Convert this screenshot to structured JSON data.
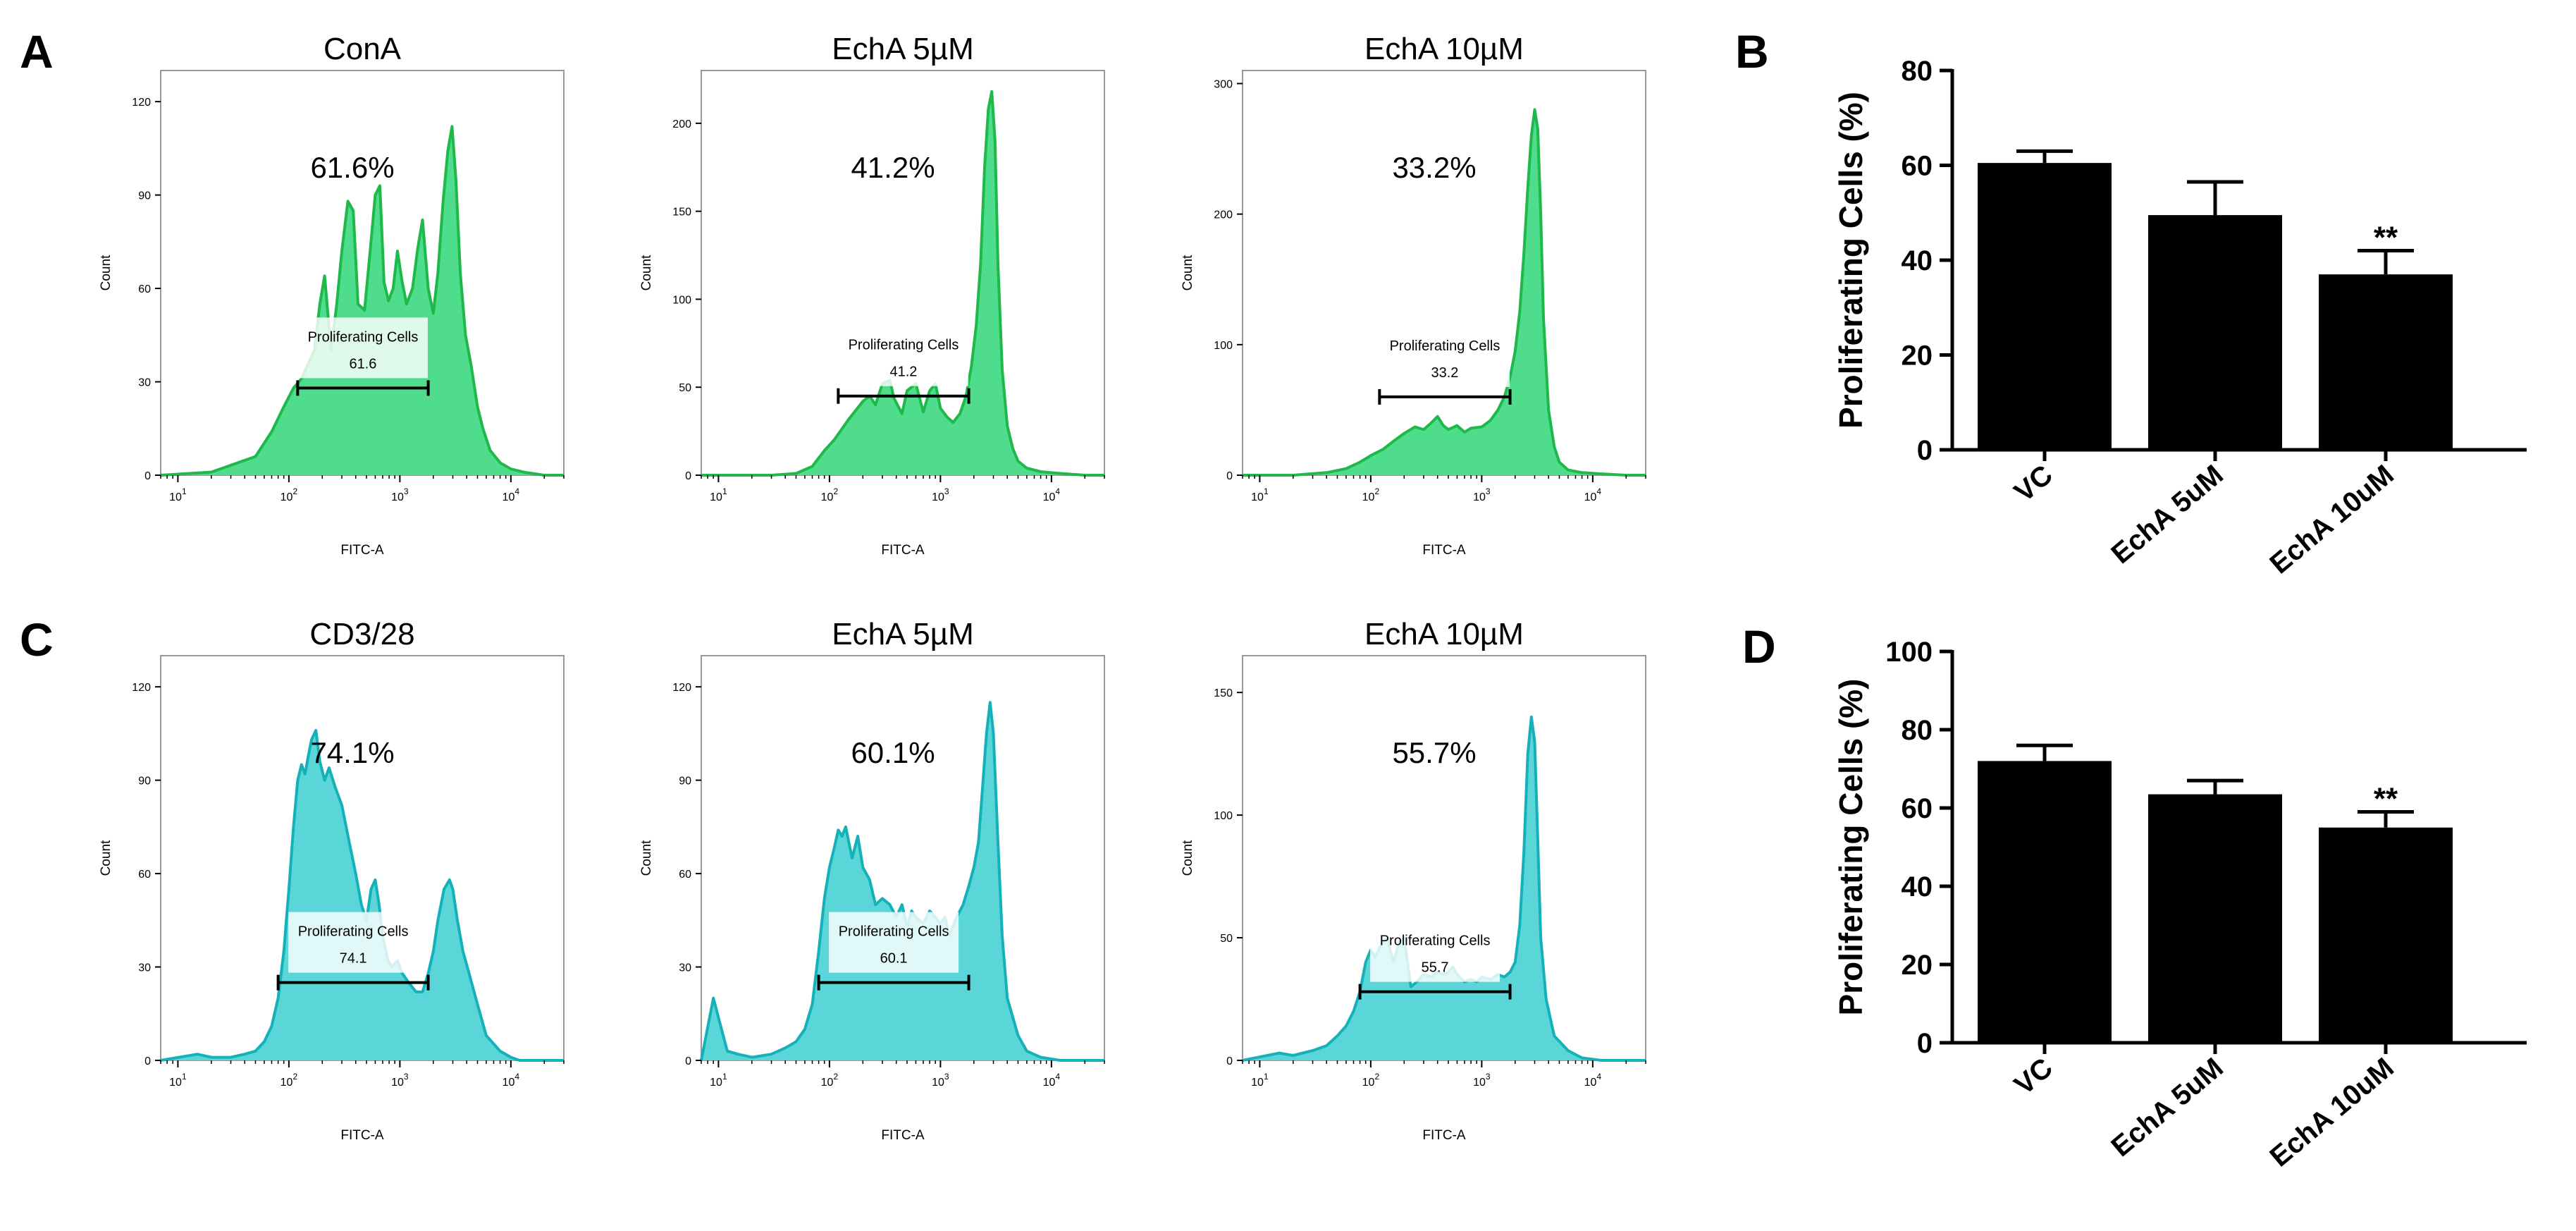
{
  "panel_letters": {
    "A": "A",
    "B": "B",
    "C": "C",
    "D": "D"
  },
  "colors": {
    "green_fill": "#4fdc8c",
    "green_line": "#1fb84a",
    "cyan_fill": "#5ad6d8",
    "cyan_line": "#14b2b8",
    "bar": "#000000"
  },
  "chart_data": [
    {
      "id": "A1",
      "type": "area",
      "title": "ConA",
      "xlabel": "FITC-A",
      "ylabel": "Count",
      "xscale": "log",
      "xlim": [
        7,
        30000
      ],
      "ylim": [
        0,
        130
      ],
      "yticks": [
        0,
        30,
        60,
        90,
        120
      ],
      "xticks": [
        {
          "base": "10",
          "exp": "1",
          "v": 10
        },
        {
          "base": "10",
          "exp": "2",
          "v": 100
        },
        {
          "base": "10",
          "exp": "3",
          "v": 1000
        },
        {
          "base": "10",
          "exp": "4",
          "v": 10000
        }
      ],
      "percent_label": "61.6%",
      "gate": {
        "name": "Proliferating Cells",
        "value": "61.6",
        "from": 120,
        "to": 1800,
        "level": 28
      },
      "color": "green",
      "x": [
        7,
        20,
        50,
        70,
        90,
        110,
        130,
        150,
        170,
        190,
        210,
        240,
        270,
        300,
        340,
        380,
        420,
        480,
        540,
        600,
        660,
        720,
        790,
        870,
        950,
        1050,
        1150,
        1300,
        1450,
        1600,
        1800,
        2000,
        2200,
        2450,
        2700,
        2950,
        3200,
        3500,
        3900,
        4400,
        5000,
        5600,
        6500,
        8000,
        10000,
        13000,
        20000,
        30000
      ],
      "y": [
        0,
        1,
        6,
        14,
        22,
        28,
        31,
        36,
        40,
        55,
        64,
        40,
        55,
        72,
        88,
        85,
        55,
        53,
        72,
        90,
        93,
        62,
        56,
        60,
        72,
        62,
        55,
        60,
        73,
        82,
        60,
        52,
        65,
        88,
        104,
        112,
        95,
        65,
        45,
        35,
        22,
        15,
        8,
        4,
        2,
        1,
        0,
        0
      ]
    },
    {
      "id": "A2",
      "type": "area",
      "title": "EchA 5µM",
      "xlabel": "FITC-A",
      "ylabel": "Count",
      "xscale": "log",
      "xlim": [
        7,
        30000
      ],
      "ylim": [
        0,
        230
      ],
      "yticks": [
        0,
        50,
        100,
        150,
        200
      ],
      "xticks": [
        {
          "base": "10",
          "exp": "1",
          "v": 10
        },
        {
          "base": "10",
          "exp": "2",
          "v": 100
        },
        {
          "base": "10",
          "exp": "3",
          "v": 1000
        },
        {
          "base": "10",
          "exp": "4",
          "v": 10000
        }
      ],
      "percent_label": "41.2%",
      "gate": {
        "name": "Proliferating Cells",
        "value": "41.2",
        "from": 120,
        "to": 1800,
        "level": 45
      },
      "color": "green",
      "x": [
        7,
        30,
        50,
        70,
        90,
        110,
        150,
        200,
        230,
        260,
        300,
        350,
        380,
        450,
        500,
        600,
        700,
        800,
        900,
        1000,
        1150,
        1300,
        1500,
        1700,
        1900,
        2100,
        2300,
        2500,
        2700,
        2900,
        3100,
        3300,
        3600,
        4000,
        4500,
        5000,
        6000,
        8000,
        12000,
        20000,
        30000
      ],
      "y": [
        0,
        0,
        1,
        5,
        14,
        20,
        32,
        42,
        45,
        40,
        52,
        54,
        44,
        35,
        48,
        52,
        36,
        48,
        52,
        38,
        33,
        30,
        35,
        45,
        62,
        85,
        120,
        175,
        208,
        218,
        190,
        120,
        60,
        28,
        15,
        8,
        4,
        2,
        1,
        0,
        0
      ]
    },
    {
      "id": "A3",
      "type": "area",
      "title": "EchA 10µM",
      "xlabel": "FITC-A",
      "ylabel": "Count",
      "xscale": "log",
      "xlim": [
        7,
        30000
      ],
      "ylim": [
        0,
        310
      ],
      "yticks": [
        0,
        100,
        200,
        300
      ],
      "xticks": [
        {
          "base": "10",
          "exp": "1",
          "v": 10
        },
        {
          "base": "10",
          "exp": "2",
          "v": 100
        },
        {
          "base": "10",
          "exp": "3",
          "v": 1000
        },
        {
          "base": "10",
          "exp": "4",
          "v": 10000
        }
      ],
      "percent_label": "33.2%",
      "gate": {
        "name": "Proliferating Cells",
        "value": "33.2",
        "from": 120,
        "to": 1800,
        "level": 60
      },
      "color": "green",
      "x": [
        7,
        20,
        40,
        60,
        80,
        100,
        130,
        160,
        200,
        250,
        300,
        350,
        400,
        450,
        500,
        600,
        700,
        800,
        1000,
        1200,
        1400,
        1600,
        1800,
        2000,
        2200,
        2400,
        2600,
        2800,
        3000,
        3200,
        3400,
        3600,
        4000,
        4500,
        5000,
        6000,
        8000,
        12000,
        20000,
        30000
      ],
      "y": [
        0,
        0,
        2,
        5,
        10,
        15,
        20,
        26,
        32,
        37,
        35,
        40,
        45,
        38,
        35,
        38,
        33,
        36,
        37,
        42,
        50,
        60,
        75,
        95,
        125,
        170,
        220,
        260,
        280,
        265,
        200,
        120,
        50,
        22,
        10,
        4,
        2,
        1,
        0,
        0
      ]
    },
    {
      "id": "B",
      "type": "bar",
      "title": "",
      "xlabel": "",
      "ylabel": "Proliferating Cells (%)",
      "ylim": [
        0,
        80
      ],
      "yticks": [
        0,
        20,
        40,
        60,
        80
      ],
      "categories": [
        "VC",
        "EchA 5uM",
        "EchA 10uM"
      ],
      "values": [
        60.5,
        49.5,
        37
      ],
      "errors": [
        2.5,
        7,
        5
      ],
      "annotations": [
        "",
        "",
        "**"
      ]
    },
    {
      "id": "C1",
      "type": "area",
      "title": "CD3/28",
      "xlabel": "FITC-A",
      "ylabel": "Count",
      "xscale": "log",
      "xlim": [
        7,
        30000
      ],
      "ylim": [
        0,
        130
      ],
      "yticks": [
        0,
        30,
        60,
        90,
        120
      ],
      "xticks": [
        {
          "base": "10",
          "exp": "1",
          "v": 10
        },
        {
          "base": "10",
          "exp": "2",
          "v": 100
        },
        {
          "base": "10",
          "exp": "3",
          "v": 1000
        },
        {
          "base": "10",
          "exp": "4",
          "v": 10000
        }
      ],
      "percent_label": "74.1%",
      "gate": {
        "name": "Proliferating Cells",
        "value": "74.1",
        "from": 80,
        "to": 1800,
        "level": 25
      },
      "color": "cyan",
      "x": [
        7,
        15,
        20,
        30,
        40,
        50,
        60,
        70,
        80,
        90,
        100,
        110,
        120,
        130,
        140,
        150,
        160,
        175,
        190,
        210,
        230,
        260,
        300,
        350,
        400,
        450,
        500,
        550,
        600,
        650,
        700,
        780,
        850,
        950,
        1050,
        1200,
        1400,
        1600,
        1800,
        2000,
        2200,
        2500,
        2800,
        3000,
        3300,
        3700,
        4200,
        5000,
        6000,
        8000,
        10000,
        12000,
        15000,
        20000,
        30000
      ],
      "y": [
        0,
        2,
        1,
        1,
        2,
        3,
        6,
        11,
        20,
        35,
        55,
        75,
        90,
        95,
        92,
        98,
        103,
        106,
        96,
        90,
        94,
        88,
        82,
        70,
        60,
        50,
        45,
        55,
        58,
        50,
        40,
        32,
        30,
        32,
        28,
        25,
        22,
        22,
        28,
        35,
        45,
        55,
        58,
        55,
        45,
        35,
        28,
        18,
        8,
        3,
        1,
        0,
        0,
        0,
        0
      ]
    },
    {
      "id": "C2",
      "type": "area",
      "title": "EchA 5µM",
      "xlabel": "FITC-A",
      "ylabel": "Count",
      "xscale": "log",
      "xlim": [
        7,
        30000
      ],
      "ylim": [
        0,
        130
      ],
      "yticks": [
        0,
        30,
        60,
        90,
        120
      ],
      "xticks": [
        {
          "base": "10",
          "exp": "1",
          "v": 10
        },
        {
          "base": "10",
          "exp": "2",
          "v": 100
        },
        {
          "base": "10",
          "exp": "3",
          "v": 1000
        },
        {
          "base": "10",
          "exp": "4",
          "v": 10000
        }
      ],
      "percent_label": "60.1%",
      "gate": {
        "name": "Proliferating Cells",
        "value": "60.1",
        "from": 80,
        "to": 1800,
        "level": 25
      },
      "color": "cyan",
      "x": [
        7,
        9,
        12,
        15,
        20,
        30,
        40,
        50,
        60,
        70,
        80,
        90,
        100,
        110,
        120,
        130,
        140,
        160,
        180,
        200,
        230,
        260,
        300,
        350,
        400,
        450,
        500,
        550,
        600,
        700,
        800,
        900,
        1000,
        1100,
        1200,
        1400,
        1600,
        1800,
        2000,
        2200,
        2400,
        2600,
        2800,
        3000,
        3300,
        3600,
        4000,
        5000,
        6000,
        8000,
        12000,
        20000,
        30000
      ],
      "y": [
        0,
        20,
        3,
        2,
        1,
        2,
        4,
        6,
        10,
        18,
        35,
        52,
        62,
        68,
        74,
        72,
        75,
        65,
        72,
        62,
        58,
        50,
        52,
        50,
        46,
        50,
        43,
        48,
        46,
        44,
        48,
        46,
        44,
        46,
        40,
        46,
        50,
        56,
        62,
        70,
        88,
        105,
        115,
        105,
        70,
        40,
        20,
        8,
        3,
        1,
        0,
        0,
        0
      ]
    },
    {
      "id": "C3",
      "type": "area",
      "title": "EchA 10µM",
      "xlabel": "FITC-A",
      "ylabel": "Count",
      "xscale": "log",
      "xlim": [
        7,
        30000
      ],
      "ylim": [
        0,
        165
      ],
      "yticks": [
        0,
        50,
        100,
        150
      ],
      "xticks": [
        {
          "base": "10",
          "exp": "1",
          "v": 10
        },
        {
          "base": "10",
          "exp": "2",
          "v": 100
        },
        {
          "base": "10",
          "exp": "3",
          "v": 1000
        },
        {
          "base": "10",
          "exp": "4",
          "v": 10000
        }
      ],
      "percent_label": "55.7%",
      "gate": {
        "name": "Proliferating Cells",
        "value": "55.7",
        "from": 80,
        "to": 1800,
        "level": 28
      },
      "color": "cyan",
      "x": [
        7,
        15,
        20,
        30,
        40,
        50,
        60,
        70,
        80,
        90,
        100,
        110,
        120,
        140,
        160,
        180,
        200,
        230,
        260,
        300,
        350,
        400,
        450,
        500,
        550,
        600,
        700,
        800,
        900,
        1000,
        1200,
        1400,
        1600,
        1800,
        2000,
        2200,
        2400,
        2600,
        2800,
        3000,
        3200,
        3400,
        3800,
        4500,
        6000,
        8000,
        12000,
        20000,
        30000
      ],
      "y": [
        0,
        3,
        2,
        4,
        6,
        10,
        14,
        20,
        28,
        40,
        45,
        42,
        46,
        50,
        40,
        48,
        50,
        30,
        32,
        35,
        34,
        36,
        35,
        36,
        38,
        35,
        32,
        33,
        32,
        34,
        33,
        35,
        34,
        36,
        40,
        55,
        85,
        125,
        140,
        130,
        90,
        50,
        25,
        10,
        4,
        1,
        0,
        0,
        0
      ]
    },
    {
      "id": "D",
      "type": "bar",
      "title": "",
      "xlabel": "",
      "ylabel": "Proliferating Cells (%)",
      "ylim": [
        0,
        100
      ],
      "yticks": [
        0,
        20,
        40,
        60,
        80,
        100
      ],
      "categories": [
        "VC",
        "EchA 5uM",
        "EchA 10uM"
      ],
      "values": [
        72,
        63.5,
        55
      ],
      "errors": [
        4,
        3.5,
        4
      ],
      "annotations": [
        "",
        "",
        "**"
      ]
    }
  ]
}
